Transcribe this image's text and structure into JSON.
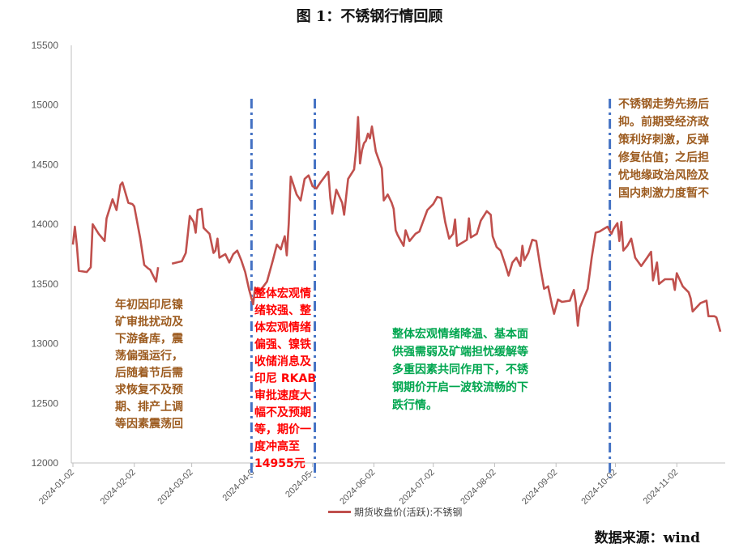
{
  "title": "图 1：不锈钢行情回顾",
  "source": "数据来源：wind",
  "colors": {
    "series": "#c0504d",
    "divider": "#4472c4",
    "brown": "#9c5b1f",
    "red": "#ff0000",
    "green": "#00a64f"
  },
  "annotations": {
    "a1": [
      "年初因印尼镍",
      "矿审批扰动及",
      "下游备库，震",
      "荡偏强运行，",
      "后随着节后需",
      "求恢复不及预",
      "期、排产上调",
      "等因素震荡回"
    ],
    "a2": [
      "整体宏观情",
      "绪较强、整",
      "体宏观情绪",
      "偏强、镍铁",
      "收储消息及",
      "印尼 RKAB",
      "审批速度大",
      "幅不及预期",
      "等，期价一",
      "度冲高至",
      "14955元"
    ],
    "a3": [
      "整体宏观情绪降温、基本面",
      "供强需弱及矿端担忧缓解等",
      "多重因素共同作用下，不锈",
      "钢期价开启一波较流畅的下",
      "跌行情。"
    ],
    "a4": [
      "不锈钢走势先扬后",
      "抑。前期受经济政",
      "策利好刺激，反弹",
      "修复估值；之后担",
      "忧地缘政治风险及",
      "国内刺激力度暂不"
    ]
  },
  "chart_data": {
    "type": "line",
    "title": "图 1：不锈钢行情回顾",
    "xlabel": "",
    "ylabel": "",
    "ylim": [
      12000,
      15500
    ],
    "yticks": [
      "15500",
      "15000",
      "14500",
      "14000",
      "13500",
      "13000",
      "12500",
      "12000"
    ],
    "xticks": [
      "2024-01-02",
      "2024-02-02",
      "2024-03-02",
      "2024-04-0",
      "2024-05-",
      "2024-06-02",
      "2024-07-02",
      "2024-08-02",
      "2024-09-02",
      "2024-10-02",
      "2024-11-02"
    ],
    "legend": {
      "position": "bottom",
      "entries": [
        "期货收盘价(活跃):不锈钢"
      ]
    },
    "grid": false,
    "vertical_markers": [
      "2024-04-02",
      "2024-05-04",
      "2024-09-30"
    ],
    "series": [
      {
        "name": "期货收盘价(活跃):不锈钢",
        "points": [
          [
            "2024-01-02",
            13830
          ],
          [
            "2024-01-03",
            13980
          ],
          [
            "2024-01-04",
            13820
          ],
          [
            "2024-01-05",
            13610
          ],
          [
            "2024-01-09",
            13600
          ],
          [
            "2024-01-11",
            13640
          ],
          [
            "2024-01-12",
            14000
          ],
          [
            "2024-01-15",
            13920
          ],
          [
            "2024-01-18",
            13860
          ],
          [
            "2024-01-19",
            14050
          ],
          [
            "2024-01-22",
            14210
          ],
          [
            "2024-01-24",
            14120
          ],
          [
            "2024-01-26",
            14330
          ],
          [
            "2024-01-27",
            14350
          ],
          [
            "2024-01-30",
            14180
          ],
          [
            "2024-02-01",
            14170
          ],
          [
            "2024-02-02",
            14150
          ],
          [
            "2024-02-05",
            13880
          ],
          [
            "2024-02-07",
            13660
          ],
          [
            "2024-02-09",
            13630
          ],
          [
            "2024-02-10",
            13620
          ],
          [
            "2024-02-13",
            13520
          ],
          [
            "2024-02-14",
            13640
          ],
          [
            "2024-02-21",
            13670
          ],
          [
            "2024-02-26",
            13690
          ],
          [
            "2024-02-28",
            13760
          ],
          [
            "2024-03-01",
            14070
          ],
          [
            "2024-03-03",
            14020
          ],
          [
            "2024-03-04",
            13930
          ],
          [
            "2024-03-05",
            14120
          ],
          [
            "2024-03-07",
            14130
          ],
          [
            "2024-03-08",
            13970
          ],
          [
            "2024-03-11",
            13920
          ],
          [
            "2024-03-13",
            13760
          ],
          [
            "2024-03-14",
            13780
          ],
          [
            "2024-03-15",
            13880
          ],
          [
            "2024-03-16",
            13720
          ],
          [
            "2024-03-19",
            13750
          ],
          [
            "2024-03-21",
            13680
          ],
          [
            "2024-03-23",
            13750
          ],
          [
            "2024-03-25",
            13780
          ],
          [
            "2024-03-27",
            13700
          ],
          [
            "2024-03-29",
            13600
          ],
          [
            "2024-03-31",
            13450
          ],
          [
            "2024-04-02",
            13330
          ],
          [
            "2024-04-03",
            13470
          ],
          [
            "2024-04-05",
            13430
          ],
          [
            "2024-04-09",
            13520
          ],
          [
            "2024-04-12",
            13700
          ],
          [
            "2024-04-14",
            13830
          ],
          [
            "2024-04-16",
            13790
          ],
          [
            "2024-04-17",
            13850
          ],
          [
            "2024-04-18",
            13900
          ],
          [
            "2024-04-19",
            13740
          ],
          [
            "2024-04-20",
            14000
          ],
          [
            "2024-04-21",
            14400
          ],
          [
            "2024-04-24",
            14250
          ],
          [
            "2024-04-26",
            14200
          ],
          [
            "2024-04-28",
            14380
          ],
          [
            "2024-04-30",
            14410
          ],
          [
            "2024-05-02",
            14320
          ],
          [
            "2024-05-04",
            14300
          ],
          [
            "2024-05-06",
            14350
          ],
          [
            "2024-05-10",
            14440
          ],
          [
            "2024-05-11",
            14220
          ],
          [
            "2024-05-12",
            14090
          ],
          [
            "2024-05-14",
            14290
          ],
          [
            "2024-05-17",
            14180
          ],
          [
            "2024-05-18",
            14080
          ],
          [
            "2024-05-20",
            14380
          ],
          [
            "2024-05-23",
            14460
          ],
          [
            "2024-05-24",
            14620
          ],
          [
            "2024-05-25",
            14900
          ],
          [
            "2024-05-26",
            14510
          ],
          [
            "2024-05-27",
            14620
          ],
          [
            "2024-05-28",
            14680
          ],
          [
            "2024-05-29",
            14700
          ],
          [
            "2024-05-30",
            14760
          ],
          [
            "2024-05-31",
            14720
          ],
          [
            "2024-06-01",
            14820
          ],
          [
            "2024-06-03",
            14610
          ],
          [
            "2024-06-06",
            14470
          ],
          [
            "2024-06-07",
            14200
          ],
          [
            "2024-06-09",
            14250
          ],
          [
            "2024-06-11",
            14180
          ],
          [
            "2024-06-12",
            14130
          ],
          [
            "2024-06-13",
            13950
          ],
          [
            "2024-06-14",
            13910
          ],
          [
            "2024-06-17",
            13820
          ],
          [
            "2024-06-18",
            13950
          ],
          [
            "2024-06-20",
            13860
          ],
          [
            "2024-06-23",
            13920
          ],
          [
            "2024-06-25",
            13940
          ],
          [
            "2024-06-27",
            14030
          ],
          [
            "2024-06-29",
            14120
          ],
          [
            "2024-07-02",
            14170
          ],
          [
            "2024-07-04",
            14230
          ],
          [
            "2024-07-06",
            14220
          ],
          [
            "2024-07-08",
            14020
          ],
          [
            "2024-07-10",
            13880
          ],
          [
            "2024-07-12",
            13920
          ],
          [
            "2024-07-13",
            14040
          ],
          [
            "2024-07-14",
            13820
          ],
          [
            "2024-07-17",
            13850
          ],
          [
            "2024-07-19",
            13870
          ],
          [
            "2024-07-20",
            14050
          ],
          [
            "2024-07-21",
            13890
          ],
          [
            "2024-07-24",
            13920
          ],
          [
            "2024-07-26",
            14030
          ],
          [
            "2024-07-29",
            14110
          ],
          [
            "2024-07-31",
            14080
          ],
          [
            "2024-08-01",
            13900
          ],
          [
            "2024-08-03",
            13810
          ],
          [
            "2024-08-05",
            13780
          ],
          [
            "2024-08-07",
            13680
          ],
          [
            "2024-08-09",
            13570
          ],
          [
            "2024-08-11",
            13680
          ],
          [
            "2024-08-13",
            13720
          ],
          [
            "2024-08-15",
            13650
          ],
          [
            "2024-08-16",
            13820
          ],
          [
            "2024-08-17",
            13700
          ],
          [
            "2024-08-19",
            13760
          ],
          [
            "2024-08-21",
            13870
          ],
          [
            "2024-08-23",
            13860
          ],
          [
            "2024-08-25",
            13650
          ],
          [
            "2024-08-27",
            13460
          ],
          [
            "2024-08-29",
            13480
          ],
          [
            "2024-08-31",
            13320
          ],
          [
            "2024-09-01",
            13250
          ],
          [
            "2024-09-03",
            13370
          ],
          [
            "2024-09-05",
            13350
          ],
          [
            "2024-09-09",
            13360
          ],
          [
            "2024-09-11",
            13450
          ],
          [
            "2024-09-12",
            13340
          ],
          [
            "2024-09-13",
            13150
          ],
          [
            "2024-09-14",
            13300
          ],
          [
            "2024-09-16",
            13380
          ],
          [
            "2024-09-18",
            13460
          ],
          [
            "2024-09-20",
            13720
          ],
          [
            "2024-09-22",
            13930
          ],
          [
            "2024-09-24",
            13940
          ],
          [
            "2024-09-26",
            13960
          ],
          [
            "2024-09-28",
            13980
          ],
          [
            "2024-09-30",
            13920
          ],
          [
            "2024-10-01",
            13960
          ],
          [
            "2024-10-03",
            14010
          ],
          [
            "2024-10-04",
            13860
          ],
          [
            "2024-10-05",
            14020
          ],
          [
            "2024-10-06",
            13780
          ],
          [
            "2024-10-08",
            13820
          ],
          [
            "2024-10-10",
            13880
          ],
          [
            "2024-10-12",
            13720
          ],
          [
            "2024-10-15",
            13650
          ],
          [
            "2024-10-18",
            13720
          ],
          [
            "2024-10-20",
            13770
          ],
          [
            "2024-10-21",
            13530
          ],
          [
            "2024-10-23",
            13680
          ],
          [
            "2024-10-24",
            13500
          ],
          [
            "2024-10-27",
            13540
          ],
          [
            "2024-10-31",
            13540
          ],
          [
            "2024-11-01",
            13450
          ],
          [
            "2024-11-02",
            13590
          ],
          [
            "2024-11-05",
            13480
          ],
          [
            "2024-11-08",
            13430
          ],
          [
            "2024-11-09",
            13380
          ],
          [
            "2024-11-10",
            13270
          ],
          [
            "2024-11-14",
            13340
          ],
          [
            "2024-11-17",
            13360
          ],
          [
            "2024-11-18",
            13230
          ],
          [
            "2024-11-21",
            13230
          ],
          [
            "2024-11-22",
            13220
          ],
          [
            "2024-11-24",
            13100
          ]
        ]
      }
    ]
  }
}
